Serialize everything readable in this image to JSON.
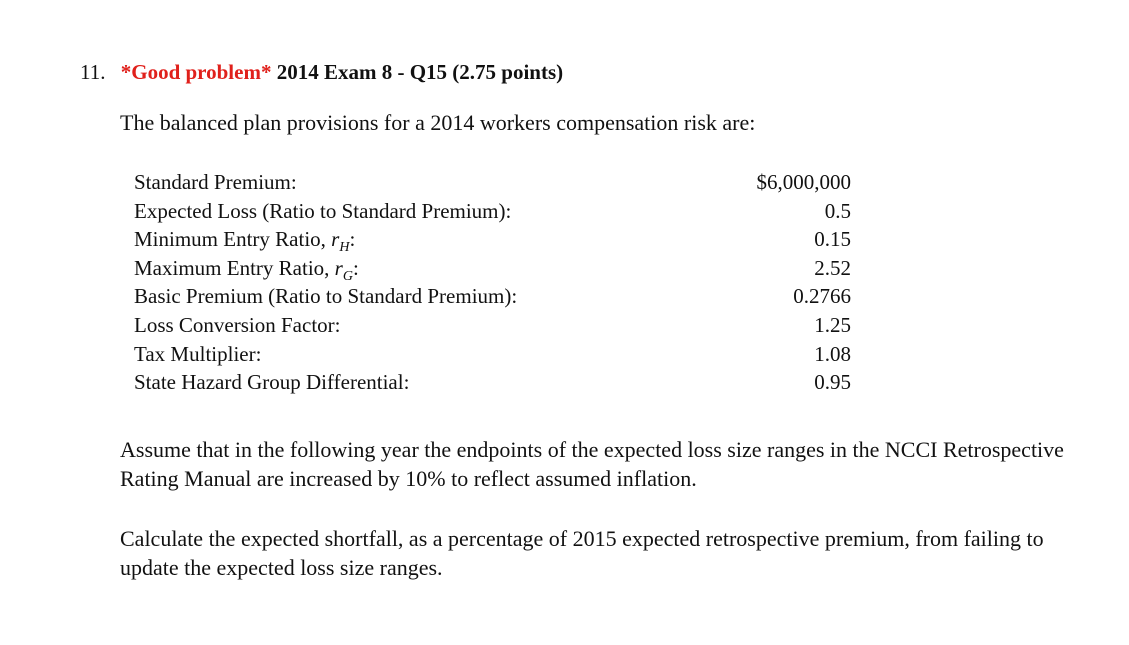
{
  "problem": {
    "number": "11.",
    "highlight": "*Good problem*",
    "title": "2014 Exam 8 - Q15 (2.75 points)"
  },
  "intro": "The balanced plan provisions for a 2014 workers compensation risk are:",
  "provisions": [
    {
      "label": "Standard Premium:",
      "value": "$6,000,000"
    },
    {
      "label": "Expected Loss (Ratio to Standard Premium):",
      "value": "0.5"
    },
    {
      "label": "Minimum Entry Ratio, ",
      "symbol": "r",
      "subscript": "H",
      "suffix": ":",
      "value": "0.15"
    },
    {
      "label": "Maximum Entry Ratio, ",
      "symbol": "r",
      "subscript": "G",
      "suffix": ":",
      "value": "2.52"
    },
    {
      "label": "Basic Premium (Ratio to Standard Premium):",
      "value": "0.2766"
    },
    {
      "label": "Loss Conversion Factor:",
      "value": "1.25"
    },
    {
      "label": "Tax Multiplier:",
      "value": "1.08"
    },
    {
      "label": "State Hazard Group Differential:",
      "value": "0.95"
    }
  ],
  "paragraphs": [
    "Assume that in the following year the endpoints of the expected loss size ranges in the NCCI Retrospective Rating Manual are increased by 10% to reflect assumed inflation.",
    "Calculate the expected shortfall, as a percentage of 2015 expected retrospective premium, from failing to update the expected loss size ranges."
  ]
}
